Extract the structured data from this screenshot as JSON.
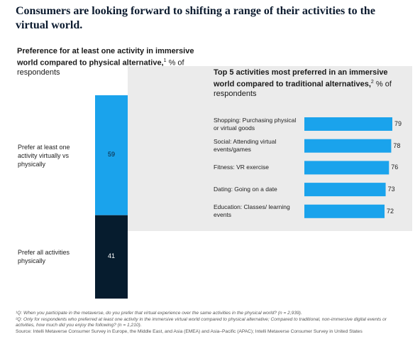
{
  "headline": "Consumers are looking forward to shifting a range of their activities to the virtual world.",
  "chart_data": [
    {
      "type": "bar",
      "stacked": true,
      "title": "Preference for at least one activity in immersive world compared to physical alternative,",
      "title_sup": "1",
      "unit": "% of respondents",
      "series": [
        {
          "name": "Prefer at least one activity virtually vs physically",
          "values": [
            59
          ],
          "color": "#1aa3ec",
          "label_color": "#0b1a2e"
        },
        {
          "name": "Prefer all activities physically",
          "values": [
            41
          ],
          "color": "#061c2e",
          "label_color": "#ffffff"
        }
      ],
      "ylim": [
        0,
        100
      ],
      "legend": "left"
    },
    {
      "type": "bar",
      "orientation": "horizontal",
      "title": "Top 5 activities most preferred in an immersive world compared to traditional alternatives,",
      "title_sup": "2",
      "unit": "% of respondents",
      "categories": [
        "Shopping: Purchasing physical or virtual goods",
        "Social: Attending virtual events/games",
        "Fitness: VR exercise",
        "Dating: Going on a date",
        "Education: Classes/ learning events"
      ],
      "values": [
        79,
        78,
        76,
        73,
        72
      ],
      "xlim": [
        0,
        100
      ],
      "color": "#1aa3ec"
    }
  ],
  "footnotes": {
    "note1": "¹Q: When you participate in the metaverse, do you prefer that virtual experience over the same activities in the physical world? (n = 2,939).",
    "note2": "²Q: Only for respondents who preferred at least one activity in the immersive virtual world compared to physical alternative; Compared to traditional, non-immersive digital events or activities, how much did you enjoy the following? (n = 1,210).",
    "source": "Source: Intelli Metaverse Consumer Survey in Europe, the Middle East, and Asia (EMEA) and Asia–Pacific (APAC); Intelli Metaverse Consumer Survey in United States"
  }
}
